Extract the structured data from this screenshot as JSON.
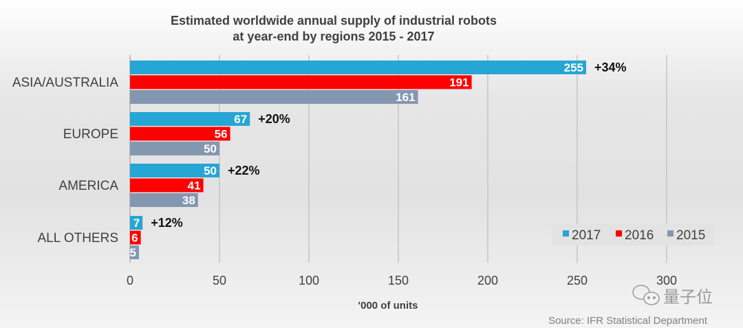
{
  "chart_data": {
    "type": "bar",
    "orientation": "horizontal",
    "title_lines": [
      "Estimated worldwide annual supply of industrial robots",
      "at year-end by regions 2015 - 2017"
    ],
    "categories": [
      "ASIA/AUSTRALIA",
      "EUROPE",
      "AMERICA",
      "ALL OTHERS"
    ],
    "series": [
      {
        "name": "2017",
        "color": "#25a6d4",
        "values": [
          255,
          67,
          50,
          7
        ]
      },
      {
        "name": "2016",
        "color": "#ff0000",
        "values": [
          191,
          56,
          41,
          6
        ]
      },
      {
        "name": "2015",
        "color": "#8497b0",
        "values": [
          161,
          50,
          38,
          5
        ]
      }
    ],
    "growth_labels": [
      "+34%",
      "+20%",
      "+22%",
      "+12%"
    ],
    "xlabel": "'000 of units",
    "xlim": [
      0,
      300
    ],
    "xticks": [
      "0",
      "50",
      "100",
      "150",
      "200",
      "250",
      "300"
    ],
    "grid": true,
    "legend_position": "bottom-right",
    "source": "Source: IFR Statistical Department",
    "watermark": "量子位"
  }
}
